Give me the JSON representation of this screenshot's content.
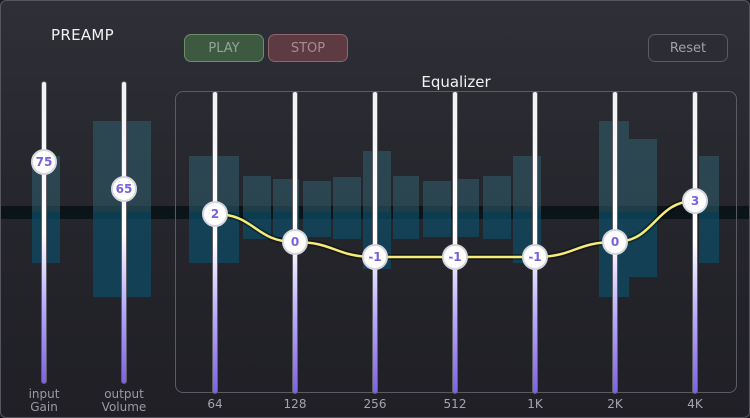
{
  "preamp": {
    "title": "PREAMP",
    "input": {
      "value": "75",
      "label_line1": "input",
      "label_line2": "Gain",
      "level_percent": 75
    },
    "output": {
      "value": "65",
      "label_line1": "output",
      "label_line2": "Volume",
      "level_percent": 65
    }
  },
  "transport": {
    "play_label": "PLAY",
    "stop_label": "STOP",
    "reset_label": "Reset"
  },
  "equalizer": {
    "title": "Equalizer",
    "gain_range_db": [
      -12,
      12
    ],
    "bands": [
      {
        "freq": "64",
        "gain": "2"
      },
      {
        "freq": "128",
        "gain": "0"
      },
      {
        "freq": "256",
        "gain": "-1"
      },
      {
        "freq": "512",
        "gain": "-1"
      },
      {
        "freq": "1K",
        "gain": "-1"
      },
      {
        "freq": "2K",
        "gain": "0"
      },
      {
        "freq": "4K",
        "gain": "3"
      }
    ],
    "curve_color": "#f5ec7a",
    "accent_color": "#7662e0"
  }
}
